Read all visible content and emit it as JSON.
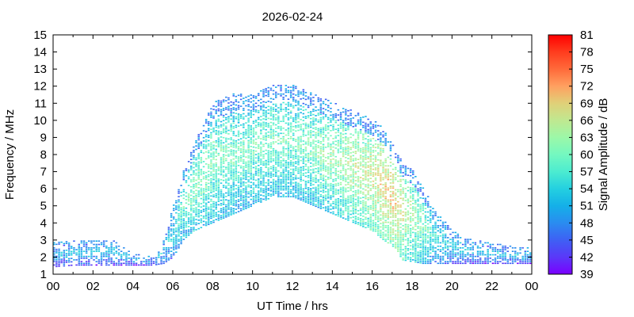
{
  "chart_data": {
    "type": "heatmap",
    "title": "2026-02-24",
    "xlabel": "UT Time / hrs",
    "ylabel": "Frequency / MHz",
    "colorbar_label": "Signal Amplitude / dB",
    "x_range": [
      0,
      24
    ],
    "y_range": [
      1,
      15
    ],
    "x_tick_labels": [
      "00",
      "02",
      "04",
      "06",
      "08",
      "10",
      "12",
      "14",
      "16",
      "18",
      "20",
      "22",
      "00"
    ],
    "y_tick_labels": [
      "1",
      "2",
      "3",
      "4",
      "5",
      "6",
      "7",
      "8",
      "9",
      "10",
      "11",
      "12",
      "13",
      "14",
      "15"
    ],
    "colorbar": {
      "min": 39,
      "max": 81,
      "tick_labels": [
        "81",
        "78",
        "75",
        "72",
        "69",
        "66",
        "63",
        "60",
        "57",
        "54",
        "51",
        "48",
        "45",
        "42",
        "39"
      ],
      "colors": [
        "#ff0000",
        "#ff3c1e",
        "#ff6a3a",
        "#ffa060",
        "#e0d078",
        "#c0e890",
        "#9cf8a8",
        "#74f8c0",
        "#4cecd0",
        "#24d0e0",
        "#14b0e8",
        "#2a8cf0",
        "#3e60f4",
        "#5a38f8",
        "#7a00ff"
      ]
    },
    "envelope": {
      "description_hours": [
        0,
        1,
        2,
        3,
        4,
        5,
        5.5,
        6,
        6.5,
        7,
        8,
        9,
        10,
        11,
        12,
        13,
        14,
        15,
        16,
        16.5,
        17,
        17.5,
        18,
        18.5,
        19,
        20,
        21,
        22,
        23,
        24
      ],
      "lower_mhz": [
        1.4,
        1.5,
        1.5,
        1.5,
        1.5,
        1.5,
        1.6,
        2.0,
        3.0,
        3.5,
        4.0,
        4.5,
        5.0,
        5.5,
        5.5,
        5.0,
        4.5,
        4.0,
        3.5,
        3.0,
        2.6,
        1.8,
        1.7,
        1.6,
        1.6,
        1.6,
        1.6,
        1.6,
        1.6,
        1.6
      ],
      "upper_mhz": [
        2.9,
        3.0,
        3.0,
        3.0,
        2.2,
        2.0,
        3.0,
        5.0,
        7.0,
        8.5,
        11.0,
        11.5,
        11.5,
        12.0,
        12.0,
        11.5,
        11.0,
        10.5,
        10.0,
        9.5,
        8.5,
        7.5,
        7.0,
        6.0,
        5.0,
        3.5,
        3.0,
        2.8,
        2.6,
        2.6
      ],
      "peak_amplitude_db": [
        52,
        53,
        53,
        53,
        52,
        52,
        54,
        56,
        60,
        62,
        62,
        61,
        61,
        61,
        61,
        62,
        64,
        66,
        68,
        70,
        71,
        68,
        64,
        62,
        58,
        55,
        53,
        53,
        53,
        53
      ]
    }
  }
}
